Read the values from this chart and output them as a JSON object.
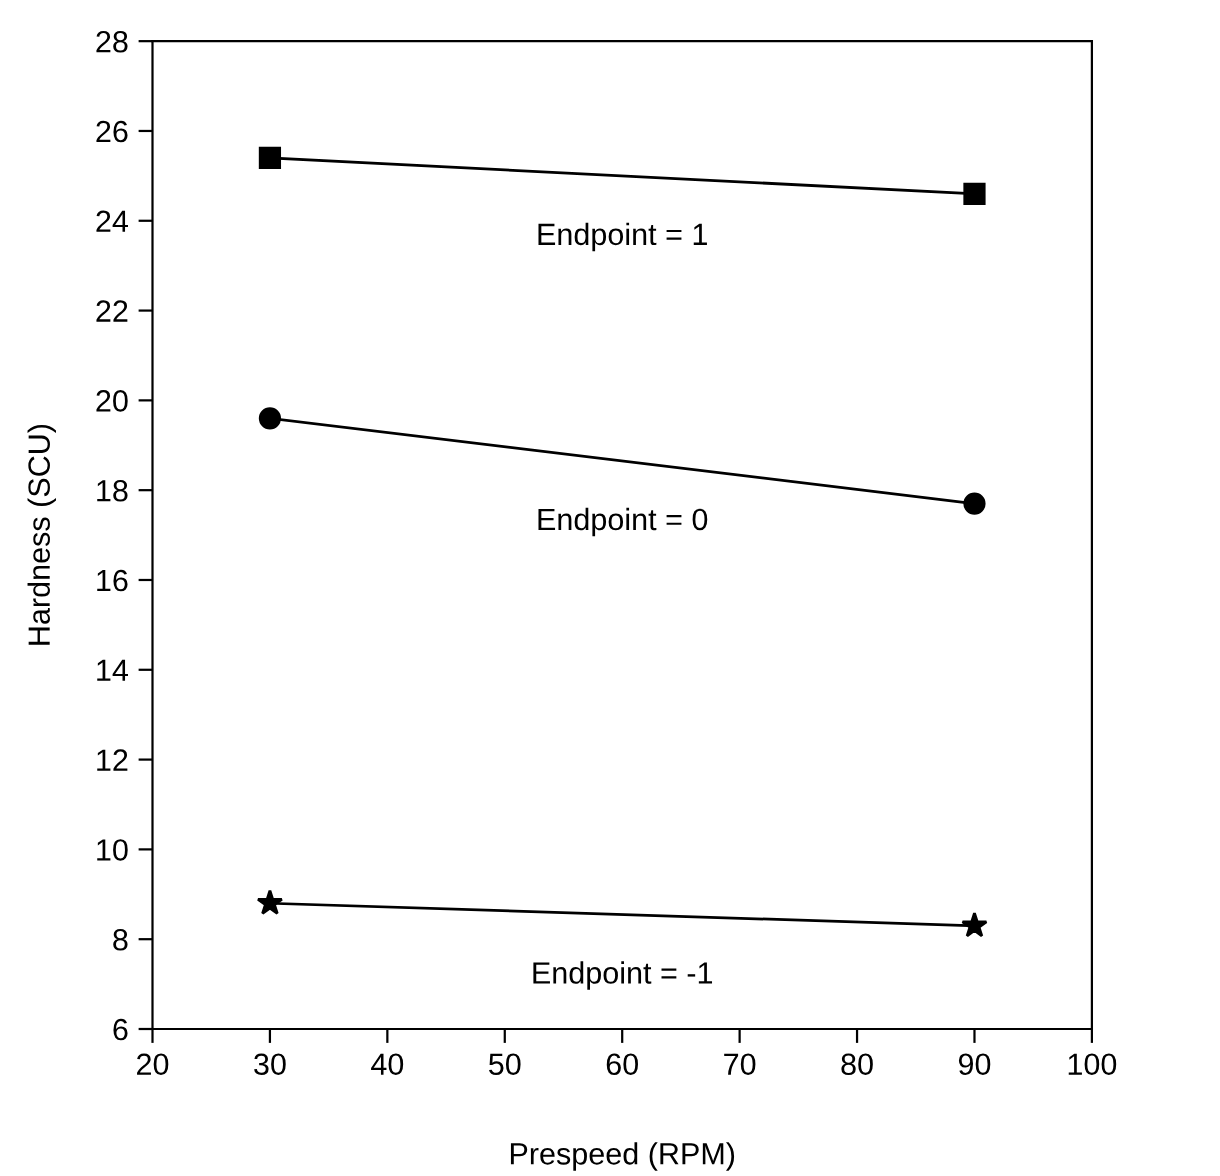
{
  "chart_data": {
    "type": "line",
    "xlabel": "Prespeed (RPM)",
    "ylabel": "Hardness (SCU)",
    "x": [
      30,
      90
    ],
    "series": [
      {
        "name": "Endpoint = 1",
        "color": "#000000",
        "marker": "square",
        "values": [
          25.4,
          24.6
        ]
      },
      {
        "name": "Endpoint = 0",
        "color": "#000000",
        "marker": "circle",
        "values": [
          19.6,
          17.7
        ]
      },
      {
        "name": "Endpoint = -1",
        "color": "#000000",
        "marker": "star",
        "values": [
          8.8,
          8.3
        ]
      }
    ],
    "xlim": [
      20,
      100
    ],
    "xticks": [
      20,
      30,
      40,
      50,
      60,
      70,
      80,
      90,
      100
    ],
    "ylim": [
      6,
      28
    ],
    "yticks": [
      6,
      8,
      10,
      12,
      14,
      16,
      18,
      20,
      22,
      24,
      26,
      28
    ],
    "grid": false,
    "legend": false,
    "line_style": "solid"
  }
}
